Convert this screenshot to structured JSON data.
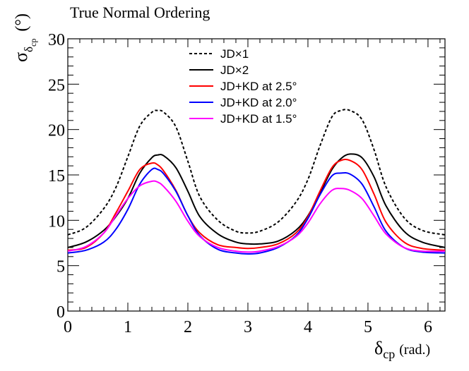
{
  "chart_data": {
    "type": "line",
    "title": "True Normal Ordering",
    "xlabel_main": "δ",
    "xlabel_sub": "cp",
    "xlabel_unit": "(rad.)",
    "ylabel_main": "σ",
    "ylabel_sub1": "δ",
    "ylabel_sub2": "cp",
    "ylabel_unit": "(°)",
    "xlim": [
      0,
      6.283
    ],
    "ylim": [
      0,
      30
    ],
    "x_ticks": [
      0,
      1,
      2,
      3,
      4,
      5,
      6
    ],
    "x_tick_labels": [
      "0",
      "1",
      "2",
      "3",
      "4",
      "5",
      "6"
    ],
    "y_ticks": [
      0,
      5,
      10,
      15,
      20,
      25,
      30
    ],
    "y_tick_labels": [
      "0",
      "5",
      "10",
      "15",
      "20",
      "25",
      "30"
    ],
    "legend_position": "top-center",
    "x": [
      0,
      0.3,
      0.6,
      0.8,
      1.0,
      1.2,
      1.4,
      1.5,
      1.6,
      1.8,
      2.0,
      2.2,
      2.5,
      2.8,
      3.0,
      3.2,
      3.5,
      3.8,
      4.0,
      4.2,
      4.4,
      4.55,
      4.7,
      4.9,
      5.1,
      5.3,
      5.6,
      5.9,
      6.283
    ],
    "series": [
      {
        "name": "JD×1",
        "color": "#000000",
        "dash": "dotted",
        "values": [
          8.4,
          9.2,
          11.3,
          13.6,
          17.0,
          20.4,
          21.9,
          22.1,
          21.9,
          20.3,
          16.5,
          12.6,
          10.0,
          8.8,
          8.6,
          8.8,
          9.8,
          12.0,
          14.5,
          18.2,
          21.4,
          22.1,
          22.1,
          21.1,
          17.8,
          13.7,
          10.3,
          8.9,
          8.4
        ]
      },
      {
        "name": "JD×2",
        "color": "#000000",
        "dash": "solid",
        "values": [
          7.0,
          7.6,
          8.9,
          10.4,
          12.4,
          15.2,
          16.9,
          17.2,
          17.1,
          15.8,
          13.2,
          10.4,
          8.5,
          7.6,
          7.4,
          7.4,
          7.7,
          8.9,
          10.5,
          13.0,
          15.6,
          16.8,
          17.3,
          16.9,
          14.8,
          11.6,
          8.8,
          7.6,
          7.0
        ]
      },
      {
        "name": "JD+KD at 2.5°",
        "color": "#ff0000",
        "dash": "solid",
        "values": [
          6.7,
          7.0,
          8.6,
          10.8,
          13.2,
          15.6,
          16.3,
          16.1,
          15.4,
          13.3,
          10.5,
          8.6,
          7.3,
          7.0,
          6.9,
          7.0,
          7.4,
          8.6,
          10.4,
          13.2,
          15.8,
          16.6,
          16.6,
          15.6,
          12.9,
          9.8,
          7.6,
          6.9,
          6.7
        ]
      },
      {
        "name": "JD+KD at 2.0°",
        "color": "#0000ff",
        "dash": "solid",
        "values": [
          6.4,
          6.7,
          7.6,
          9.0,
          11.2,
          14.0,
          15.6,
          15.6,
          15.1,
          13.2,
          10.5,
          8.3,
          6.8,
          6.4,
          6.3,
          6.4,
          7.0,
          8.3,
          10.2,
          12.8,
          14.9,
          15.2,
          15.1,
          14.0,
          11.5,
          8.8,
          7.0,
          6.5,
          6.4
        ]
      },
      {
        "name": "JD+KD at 1.5°",
        "color": "#ff00ff",
        "dash": "solid",
        "values": [
          6.6,
          7.1,
          8.6,
          10.5,
          12.4,
          13.8,
          14.3,
          14.2,
          13.7,
          12.1,
          9.9,
          8.2,
          7.0,
          6.6,
          6.5,
          6.6,
          7.1,
          8.2,
          9.7,
          11.8,
          13.3,
          13.5,
          13.3,
          12.4,
          10.5,
          8.5,
          7.0,
          6.6,
          6.6
        ]
      }
    ]
  }
}
